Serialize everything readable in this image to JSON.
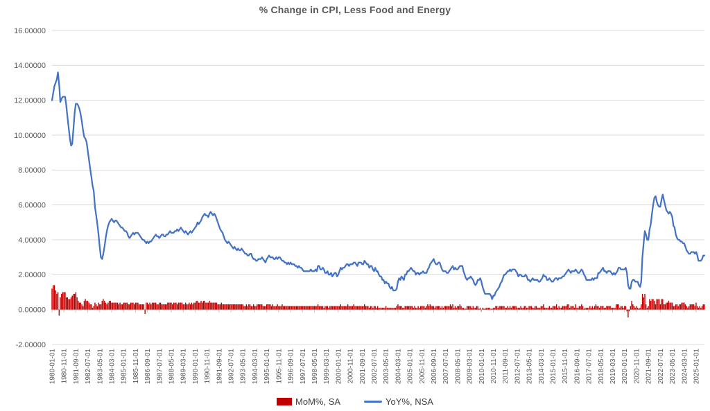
{
  "chart_data": {
    "type": "combo",
    "title": "% Change in CPI, Less Food and Energy",
    "grid": "horizontal",
    "legend_position": "bottom",
    "ylim": [
      -2,
      16
    ],
    "y_ticks": [
      16,
      14,
      12,
      10,
      8,
      6,
      4,
      2,
      0,
      -2
    ],
    "y_tick_labels": [
      "16.00000",
      "14.00000",
      "12.00000",
      "10.00000",
      "8.00000",
      "6.00000",
      "4.00000",
      "2.00000",
      "0.00000",
      "-2.00000"
    ],
    "x_start": "1980-01-01",
    "x_frequency": "monthly",
    "x_tick_every_n_months": 10,
    "x_tick_labels": [
      "1980-01-01",
      "1980-11-01",
      "1981-09-01",
      "1982-07-01",
      "1983-05-01",
      "1984-03-01",
      "1985-01-01",
      "1985-11-01",
      "1986-09-01",
      "1987-07-01",
      "1988-05-01",
      "1989-03-01",
      "1990-01-01",
      "1990-11-01",
      "1991-09-01",
      "1992-07-01",
      "1993-05-01",
      "1994-03-01",
      "1995-01-01",
      "1995-11-01",
      "1996-09-01",
      "1997-07-01",
      "1998-05-01",
      "1999-03-01",
      "2000-01-01",
      "2000-11-01",
      "2001-09-01",
      "2002-07-01",
      "2003-05-01",
      "2004-03-01",
      "2005-01-01",
      "2005-11-01",
      "2006-09-01",
      "2007-07-01",
      "2008-05-01",
      "2009-03-01",
      "2010-01-01",
      "2010-11-01",
      "2011-09-01",
      "2012-07-01",
      "2013-05-01",
      "2014-03-01",
      "2015-01-01",
      "2015-11-01",
      "2016-09-01",
      "2017-07-01",
      "2018-05-01",
      "2019-03-01",
      "2020-01-01",
      "2020-11-01",
      "2021-09-01",
      "2022-07-01",
      "2023-05-01",
      "2024-03-01",
      "2025-01-01"
    ],
    "series": [
      {
        "name": "MoM%, SA",
        "type": "bar",
        "color": "#C00000",
        "values": [
          1.2,
          1.4,
          1.4,
          1.1,
          0.9,
          1.0,
          -0.35,
          0.7,
          0.9,
          1.0,
          1.0,
          1.0,
          0.7,
          0.7,
          0.6,
          0.6,
          0.7,
          0.8,
          0.9,
          0.9,
          1.0,
          0.7,
          0.5,
          0.4,
          0.4,
          0.3,
          0.2,
          0.5,
          0.6,
          0.5,
          0.5,
          0.4,
          0.3,
          0.3,
          0.1,
          0.2,
          0.4,
          0.3,
          0.2,
          0.4,
          0.3,
          0.3,
          0.5,
          0.6,
          0.5,
          0.4,
          0.3,
          0.4,
          0.5,
          0.5,
          0.4,
          0.4,
          0.4,
          0.4,
          0.4,
          0.4,
          0.3,
          0.4,
          0.3,
          0.3,
          0.4,
          0.4,
          0.4,
          0.4,
          0.3,
          0.3,
          0.4,
          0.4,
          0.4,
          0.3,
          0.4,
          0.4,
          0.4,
          0.3,
          0.3,
          0.3,
          0.3,
          0.3,
          -0.25,
          0.4,
          0.4,
          0.3,
          0.4,
          0.3,
          0.4,
          0.4,
          0.4,
          0.4,
          0.3,
          0.3,
          0.4,
          0.4,
          0.3,
          0.3,
          0.3,
          0.3,
          0.3,
          0.4,
          0.4,
          0.4,
          0.4,
          0.3,
          0.4,
          0.4,
          0.4,
          0.3,
          0.4,
          0.4,
          0.4,
          0.4,
          0.3,
          0.3,
          0.4,
          0.3,
          0.3,
          0.4,
          0.3,
          0.4,
          0.3,
          0.4,
          0.4,
          0.5,
          0.5,
          0.4,
          0.4,
          0.5,
          0.4,
          0.5,
          0.5,
          0.4,
          0.4,
          0.4,
          0.5,
          0.4,
          0.4,
          0.4,
          0.4,
          0.4,
          0.4,
          0.3,
          0.3,
          0.3,
          0.4,
          0.3,
          0.3,
          0.3,
          0.3,
          0.3,
          0.3,
          0.3,
          0.3,
          0.3,
          0.3,
          0.3,
          0.3,
          0.3,
          0.3,
          0.3,
          0.3,
          0.3,
          0.3,
          0.2,
          0.2,
          0.3,
          0.2,
          0.3,
          0.3,
          0.2,
          0.2,
          0.3,
          0.2,
          0.2,
          0.3,
          0.3,
          0.3,
          0.3,
          0.3,
          0.2,
          0.2,
          0.2,
          0.3,
          0.3,
          0.3,
          0.3,
          0.2,
          0.3,
          0.2,
          0.2,
          0.2,
          0.3,
          0.2,
          0.2,
          0.2,
          0.3,
          0.2,
          0.2,
          0.2,
          0.2,
          0.2,
          0.2,
          0.2,
          0.2,
          0.2,
          0.2,
          0.2,
          0.2,
          0.2,
          0.2,
          0.2,
          0.2,
          0.2,
          0.2,
          0.2,
          0.2,
          0.2,
          0.2,
          0.2,
          0.2,
          0.2,
          0.2,
          0.2,
          0.2,
          0.2,
          0.3,
          0.2,
          0.2,
          0.2,
          0.2,
          0.1,
          0.2,
          0.2,
          0.2,
          0.1,
          0.2,
          0.2,
          0.2,
          0.2,
          0.2,
          0.2,
          0.2,
          0.2,
          0.2,
          0.3,
          0.2,
          0.2,
          0.2,
          0.2,
          0.2,
          0.3,
          0.2,
          0.2,
          0.2,
          0.2,
          0.3,
          0.2,
          0.2,
          0.2,
          0.2,
          0.2,
          0.2,
          0.2,
          0.2,
          0.3,
          0.2,
          0.2,
          0.2,
          0.1,
          0.2,
          0.2,
          0.1,
          0.2,
          0.2,
          0.1,
          0.2,
          0.1,
          0.1,
          0.1,
          0.1,
          0.1,
          0.1,
          0.2,
          0.1,
          0.1,
          0.1,
          0.1,
          0.1,
          0.1,
          0.1,
          0.1,
          0.2,
          0.3,
          0.2,
          0.2,
          0.2,
          0.1,
          0.1,
          0.2,
          0.2,
          0.2,
          0.2,
          0.2,
          0.2,
          0.2,
          0.1,
          0.2,
          0.1,
          0.1,
          0.2,
          0.1,
          0.2,
          0.2,
          0.2,
          0.2,
          0.1,
          0.2,
          0.3,
          0.2,
          0.3,
          0.2,
          0.2,
          0.2,
          0.1,
          0.2,
          0.2,
          0.2,
          0.2,
          0.1,
          0.2,
          0.1,
          0.2,
          0.2,
          0.2,
          0.2,
          0.2,
          0.3,
          0.2,
          0.3,
          0.1,
          0.2,
          0.1,
          0.2,
          0.2,
          0.3,
          0.2,
          0.1,
          0.1,
          0.05,
          0.05,
          0.2,
          0.2,
          0.2,
          0.2,
          0.1,
          0.2,
          0.1,
          0.1,
          0.2,
          0.2,
          0.05,
          0.1,
          -0.1,
          0.1,
          0.05,
          0.05,
          0.1,
          0.1,
          0.1,
          0.1,
          0.05,
          0.05,
          0.1,
          0.1,
          0.2,
          0.2,
          0.1,
          0.2,
          0.2,
          0.2,
          0.2,
          0.2,
          0.1,
          0.1,
          0.2,
          0.1,
          0.2,
          0.1,
          0.2,
          0.2,
          0.2,
          0.2,
          0.1,
          0.1,
          0.1,
          0.2,
          0.1,
          0.1,
          0.2,
          0.2,
          0.1,
          0.1,
          0.2,
          0.2,
          0.2,
          0.1,
          0.1,
          0.2,
          0.2,
          0.1,
          0.1,
          0.1,
          0.2,
          0.2,
          0.3,
          0.1,
          0.1,
          0.1,
          0.1,
          0.2,
          0.1,
          0.1,
          0.2,
          0.2,
          0.2,
          0.3,
          0.1,
          0.2,
          0.1,
          0.1,
          0.2,
          0.2,
          0.2,
          0.2,
          0.3,
          0.3,
          0.1,
          0.2,
          0.2,
          0.2,
          0.1,
          0.3,
          0.1,
          0.1,
          0.2,
          0.2,
          0.3,
          0.2,
          0.05,
          0.1,
          0.1,
          0.1,
          0.1,
          0.2,
          0.1,
          0.2,
          0.1,
          0.2,
          0.3,
          0.2,
          0.2,
          0.1,
          0.2,
          0.2,
          0.2,
          0.1,
          0.1,
          0.2,
          0.2,
          0.2,
          0.2,
          0.1,
          0.1,
          0.1,
          0.1,
          0.3,
          0.3,
          0.3,
          0.1,
          0.2,
          0.2,
          0.1,
          0.2,
          0.2,
          -0.1,
          -0.45,
          -0.1,
          0.2,
          0.5,
          0.3,
          0.2,
          0.1,
          0.2,
          0.1,
          0.05,
          0.1,
          0.3,
          0.9,
          0.7,
          0.9,
          0.3,
          0.1,
          0.2,
          0.6,
          0.5,
          0.6,
          0.6,
          0.5,
          0.3,
          0.6,
          0.6,
          0.6,
          0.3,
          0.6,
          0.6,
          0.3,
          0.3,
          0.4,
          0.4,
          0.5,
          0.4,
          0.4,
          0.4,
          0.2,
          0.2,
          0.3,
          0.3,
          0.2,
          0.3,
          0.3,
          0.4,
          0.4,
          0.4,
          0.3,
          0.2,
          0.1,
          0.2,
          0.3,
          0.3,
          0.3,
          0.3,
          0.2,
          0.4,
          0.2,
          0.1,
          0.2,
          0.1,
          0.2,
          0.3,
          0.3
        ]
      },
      {
        "name": "YoY%, NSA",
        "type": "line",
        "color": "#4472C4",
        "values": [
          12.0,
          12.4,
          12.8,
          13.0,
          13.2,
          13.6,
          12.9,
          11.9,
          12.1,
          12.2,
          12.2,
          12.2,
          11.7,
          11.0,
          10.4,
          9.8,
          9.4,
          9.5,
          10.4,
          11.3,
          11.8,
          11.8,
          11.7,
          11.5,
          11.2,
          10.8,
          10.3,
          9.9,
          9.8,
          9.6,
          9.1,
          8.6,
          8.1,
          7.6,
          7.1,
          6.8,
          5.9,
          5.4,
          4.9,
          4.3,
          3.6,
          3.0,
          2.9,
          3.2,
          3.6,
          4.1,
          4.5,
          4.8,
          5.0,
          5.1,
          5.2,
          5.1,
          5.0,
          5.1,
          5.1,
          5.0,
          4.9,
          4.8,
          4.7,
          4.7,
          4.6,
          4.5,
          4.5,
          4.4,
          4.2,
          4.1,
          4.2,
          4.3,
          4.4,
          4.3,
          4.4,
          4.4,
          4.4,
          4.3,
          4.2,
          4.1,
          4.0,
          4.0,
          3.9,
          3.8,
          3.9,
          3.8,
          3.9,
          3.9,
          4.0,
          4.1,
          4.2,
          4.3,
          4.2,
          4.2,
          4.1,
          4.2,
          4.3,
          4.3,
          4.2,
          4.2,
          4.3,
          4.3,
          4.4,
          4.5,
          4.4,
          4.4,
          4.4,
          4.5,
          4.5,
          4.6,
          4.5,
          4.6,
          4.7,
          4.6,
          4.5,
          4.4,
          4.5,
          4.4,
          4.3,
          4.4,
          4.5,
          4.4,
          4.5,
          4.6,
          4.7,
          4.8,
          5.0,
          4.9,
          5.0,
          5.1,
          5.3,
          5.4,
          5.5,
          5.4,
          5.4,
          5.3,
          5.5,
          5.6,
          5.5,
          5.4,
          5.5,
          5.4,
          5.2,
          5.0,
          4.8,
          4.6,
          4.5,
          4.4,
          4.2,
          4.0,
          3.9,
          3.8,
          3.9,
          3.8,
          3.7,
          3.6,
          3.5,
          3.6,
          3.5,
          3.4,
          3.5,
          3.4,
          3.4,
          3.5,
          3.4,
          3.3,
          3.2,
          3.2,
          3.1,
          3.1,
          3.2,
          3.2,
          3.0,
          2.9,
          2.9,
          2.8,
          2.8,
          2.9,
          2.9,
          2.9,
          3.0,
          2.9,
          2.8,
          2.7,
          2.9,
          3.0,
          3.1,
          3.0,
          3.0,
          3.0,
          2.9,
          2.9,
          3.0,
          2.9,
          3.0,
          3.0,
          2.9,
          2.8,
          2.8,
          2.7,
          2.7,
          2.6,
          2.7,
          2.6,
          2.7,
          2.6,
          2.6,
          2.6,
          2.5,
          2.5,
          2.4,
          2.5,
          2.4,
          2.4,
          2.3,
          2.2,
          2.2,
          2.2,
          2.2,
          2.2,
          2.2,
          2.3,
          2.2,
          2.2,
          2.2,
          2.3,
          2.2,
          2.5,
          2.5,
          2.3,
          2.3,
          2.4,
          2.3,
          2.1,
          2.1,
          2.2,
          2.0,
          2.0,
          2.1,
          1.9,
          2.0,
          2.1,
          2.1,
          1.9,
          2.0,
          2.2,
          2.4,
          2.3,
          2.4,
          2.4,
          2.5,
          2.6,
          2.6,
          2.5,
          2.6,
          2.6,
          2.6,
          2.7,
          2.7,
          2.6,
          2.5,
          2.7,
          2.7,
          2.7,
          2.6,
          2.6,
          2.8,
          2.7,
          2.6,
          2.6,
          2.4,
          2.5,
          2.5,
          2.3,
          2.2,
          2.4,
          2.2,
          2.2,
          2.0,
          1.9,
          1.9,
          1.7,
          1.7,
          1.5,
          1.6,
          1.5,
          1.5,
          1.3,
          1.2,
          1.3,
          1.1,
          1.1,
          1.1,
          1.2,
          1.6,
          1.8,
          1.7,
          1.9,
          1.8,
          1.7,
          2.0,
          2.0,
          2.2,
          2.2,
          2.3,
          2.4,
          2.3,
          2.2,
          2.2,
          2.0,
          2.1,
          2.1,
          2.0,
          2.1,
          2.1,
          2.2,
          2.1,
          2.1,
          2.1,
          2.3,
          2.4,
          2.6,
          2.7,
          2.8,
          2.9,
          2.7,
          2.6,
          2.6,
          2.7,
          2.7,
          2.5,
          2.3,
          2.2,
          2.2,
          2.2,
          2.1,
          2.1,
          2.2,
          2.3,
          2.4,
          2.5,
          2.3,
          2.4,
          2.3,
          2.3,
          2.4,
          2.5,
          2.5,
          2.5,
          2.2,
          2.0,
          1.8,
          1.7,
          1.8,
          1.8,
          1.9,
          1.8,
          1.7,
          1.5,
          1.4,
          1.5,
          1.7,
          1.7,
          1.8,
          1.6,
          1.3,
          1.1,
          0.9,
          0.9,
          0.9,
          0.9,
          0.9,
          0.8,
          0.6,
          0.8,
          0.8,
          1.0,
          1.1,
          1.2,
          1.3,
          1.5,
          1.6,
          1.8,
          2.0,
          2.0,
          2.1,
          2.2,
          2.2,
          2.3,
          2.2,
          2.3,
          2.3,
          2.3,
          2.2,
          2.1,
          1.9,
          2.0,
          2.0,
          1.9,
          1.9,
          1.9,
          2.0,
          1.9,
          1.7,
          1.7,
          1.6,
          1.7,
          1.8,
          1.7,
          1.7,
          1.7,
          1.7,
          1.6,
          1.6,
          1.7,
          1.8,
          2.0,
          1.9,
          1.9,
          1.7,
          1.7,
          1.8,
          1.7,
          1.6,
          1.6,
          1.7,
          1.8,
          1.8,
          1.7,
          1.8,
          1.8,
          1.8,
          1.9,
          1.9,
          2.0,
          2.1,
          2.2,
          2.3,
          2.2,
          2.1,
          2.2,
          2.2,
          2.2,
          2.3,
          2.2,
          2.1,
          2.1,
          2.2,
          2.3,
          2.2,
          2.0,
          1.9,
          1.7,
          1.7,
          1.7,
          1.7,
          1.7,
          1.8,
          1.7,
          1.8,
          1.8,
          1.8,
          2.1,
          2.1,
          2.2,
          2.3,
          2.4,
          2.2,
          2.2,
          2.1,
          2.2,
          2.2,
          2.2,
          2.1,
          2.0,
          2.1,
          2.0,
          2.1,
          2.2,
          2.4,
          2.4,
          2.3,
          2.3,
          2.3,
          2.3,
          2.4,
          2.1,
          1.4,
          1.2,
          1.2,
          1.6,
          1.7,
          1.7,
          1.6,
          1.6,
          1.6,
          1.4,
          1.3,
          1.6,
          3.0,
          3.8,
          4.5,
          4.3,
          4.0,
          4.0,
          4.6,
          4.9,
          5.5,
          6.0,
          6.4,
          6.5,
          6.2,
          6.0,
          5.9,
          5.9,
          6.3,
          6.6,
          6.3,
          6.0,
          5.7,
          5.6,
          5.5,
          5.6,
          5.5,
          5.3,
          4.8,
          4.7,
          4.3,
          4.1,
          4.0,
          4.0,
          3.9,
          3.9,
          3.8,
          3.8,
          3.6,
          3.4,
          3.3,
          3.2,
          3.2,
          3.3,
          3.3,
          3.3,
          3.2,
          3.3,
          3.1,
          2.8,
          2.8,
          2.8,
          2.9,
          3.1,
          3.1
        ]
      }
    ],
    "colors": {
      "grid": "#D9D9D9",
      "tick": "#BFBFBF",
      "axis_text": "#595959",
      "title_text": "#595959",
      "background": "#FFFFFF"
    }
  }
}
